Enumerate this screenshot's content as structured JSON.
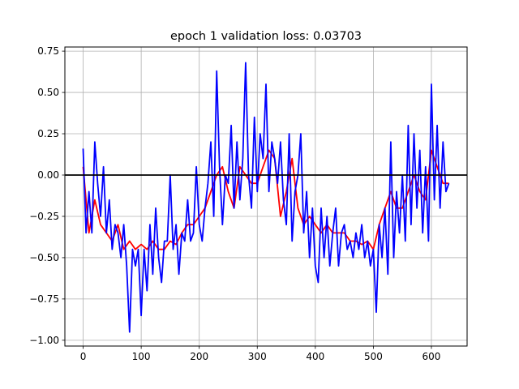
{
  "chart_data": {
    "type": "line",
    "title": "epoch 1  validation loss: 0.03703",
    "xlim": [
      -31.5,
      661.5
    ],
    "ylim": [
      -1.035,
      0.775
    ],
    "xticks": [
      0,
      100,
      200,
      300,
      400,
      500,
      600
    ],
    "yticks": [
      -1.0,
      -0.75,
      -0.5,
      -0.25,
      0.0,
      0.25,
      0.5,
      0.75
    ],
    "xtick_labels": [
      "0",
      "100",
      "200",
      "300",
      "400",
      "500",
      "600"
    ],
    "ytick_labels": [
      "−1.00",
      "−0.75",
      "−0.50",
      "−0.25",
      "0.00",
      "0.25",
      "0.50",
      "0.75"
    ],
    "grid": true,
    "reference_line_y": 0,
    "colors": {
      "series_red": "#ff0000",
      "series_blue": "#0000ff",
      "zero_line": "#000000",
      "grid": "#b0b0b0"
    },
    "series": [
      {
        "color": "#ff0000",
        "x": [
          0,
          10,
          20,
          30,
          40,
          50,
          60,
          70,
          80,
          90,
          100,
          110,
          120,
          130,
          140,
          150,
          160,
          170,
          180,
          190,
          200,
          210,
          220,
          230,
          240,
          250,
          260,
          270,
          280,
          290,
          300,
          310,
          320,
          330,
          340,
          350,
          360,
          370,
          380,
          390,
          400,
          410,
          420,
          430,
          440,
          450,
          460,
          470,
          480,
          490,
          500,
          510,
          520,
          530,
          540,
          550,
          560,
          570,
          580,
          590,
          600,
          610,
          620,
          630
        ],
        "y": [
          0.05,
          -0.35,
          -0.15,
          -0.3,
          -0.35,
          -0.4,
          -0.3,
          -0.45,
          -0.4,
          -0.45,
          -0.42,
          -0.45,
          -0.4,
          -0.45,
          -0.45,
          -0.4,
          -0.42,
          -0.35,
          -0.3,
          -0.3,
          -0.25,
          -0.2,
          -0.1,
          0.0,
          0.05,
          -0.1,
          -0.2,
          0.05,
          0.0,
          -0.05,
          -0.05,
          0.05,
          0.15,
          0.1,
          -0.25,
          -0.1,
          0.1,
          -0.2,
          -0.3,
          -0.25,
          -0.3,
          -0.35,
          -0.3,
          -0.35,
          -0.35,
          -0.35,
          -0.4,
          -0.4,
          -0.42,
          -0.4,
          -0.45,
          -0.3,
          -0.2,
          -0.1,
          -0.2,
          -0.2,
          -0.1,
          0.0,
          -0.1,
          -0.15,
          0.15,
          0.05,
          -0.05,
          -0.05
        ]
      },
      {
        "color": "#0000ff",
        "x": [
          0,
          5,
          10,
          15,
          20,
          25,
          30,
          35,
          40,
          45,
          50,
          55,
          60,
          65,
          70,
          75,
          80,
          85,
          90,
          95,
          100,
          105,
          110,
          115,
          120,
          125,
          130,
          135,
          140,
          145,
          150,
          155,
          160,
          165,
          170,
          175,
          180,
          185,
          190,
          195,
          200,
          205,
          210,
          215,
          220,
          225,
          230,
          235,
          240,
          245,
          250,
          255,
          260,
          265,
          270,
          275,
          280,
          285,
          290,
          295,
          300,
          305,
          310,
          315,
          320,
          325,
          330,
          335,
          340,
          345,
          350,
          355,
          360,
          365,
          370,
          375,
          380,
          385,
          390,
          395,
          400,
          405,
          410,
          415,
          420,
          425,
          430,
          435,
          440,
          445,
          450,
          455,
          460,
          465,
          470,
          475,
          480,
          485,
          490,
          495,
          500,
          505,
          510,
          515,
          520,
          525,
          530,
          535,
          540,
          545,
          550,
          555,
          560,
          565,
          570,
          575,
          580,
          585,
          590,
          595,
          600,
          605,
          610,
          615,
          620,
          625,
          630
        ],
        "y": [
          0.16,
          -0.35,
          -0.1,
          -0.35,
          0.2,
          -0.05,
          -0.25,
          0.05,
          -0.35,
          -0.15,
          -0.45,
          -0.3,
          -0.35,
          -0.5,
          -0.3,
          -0.55,
          -0.95,
          -0.45,
          -0.55,
          -0.45,
          -0.85,
          -0.45,
          -0.7,
          -0.3,
          -0.6,
          -0.2,
          -0.5,
          -0.65,
          -0.4,
          -0.4,
          0.0,
          -0.45,
          -0.3,
          -0.6,
          -0.35,
          -0.4,
          -0.15,
          -0.4,
          -0.35,
          0.05,
          -0.3,
          -0.4,
          -0.2,
          -0.05,
          0.2,
          -0.25,
          0.63,
          0.05,
          -0.3,
          0.0,
          -0.05,
          0.3,
          -0.2,
          0.2,
          -0.15,
          0.1,
          0.68,
          0.0,
          -0.2,
          0.35,
          -0.1,
          0.25,
          0.1,
          0.55,
          -0.1,
          0.2,
          0.1,
          -0.05,
          0.2,
          -0.15,
          -0.3,
          0.25,
          -0.4,
          -0.1,
          0.0,
          0.25,
          -0.35,
          -0.1,
          -0.5,
          -0.2,
          -0.55,
          -0.65,
          -0.2,
          -0.5,
          -0.25,
          -0.55,
          -0.35,
          -0.2,
          -0.55,
          -0.35,
          -0.3,
          -0.45,
          -0.4,
          -0.5,
          -0.35,
          -0.45,
          -0.3,
          -0.5,
          -0.4,
          -0.55,
          -0.45,
          -0.83,
          -0.3,
          -0.5,
          -0.2,
          -0.6,
          0.2,
          -0.5,
          -0.1,
          -0.35,
          0.0,
          -0.4,
          0.3,
          -0.3,
          0.25,
          -0.2,
          0.15,
          -0.35,
          0.05,
          -0.4,
          0.55,
          -0.15,
          0.3,
          -0.2,
          0.2,
          -0.1,
          -0.05
        ]
      }
    ]
  }
}
